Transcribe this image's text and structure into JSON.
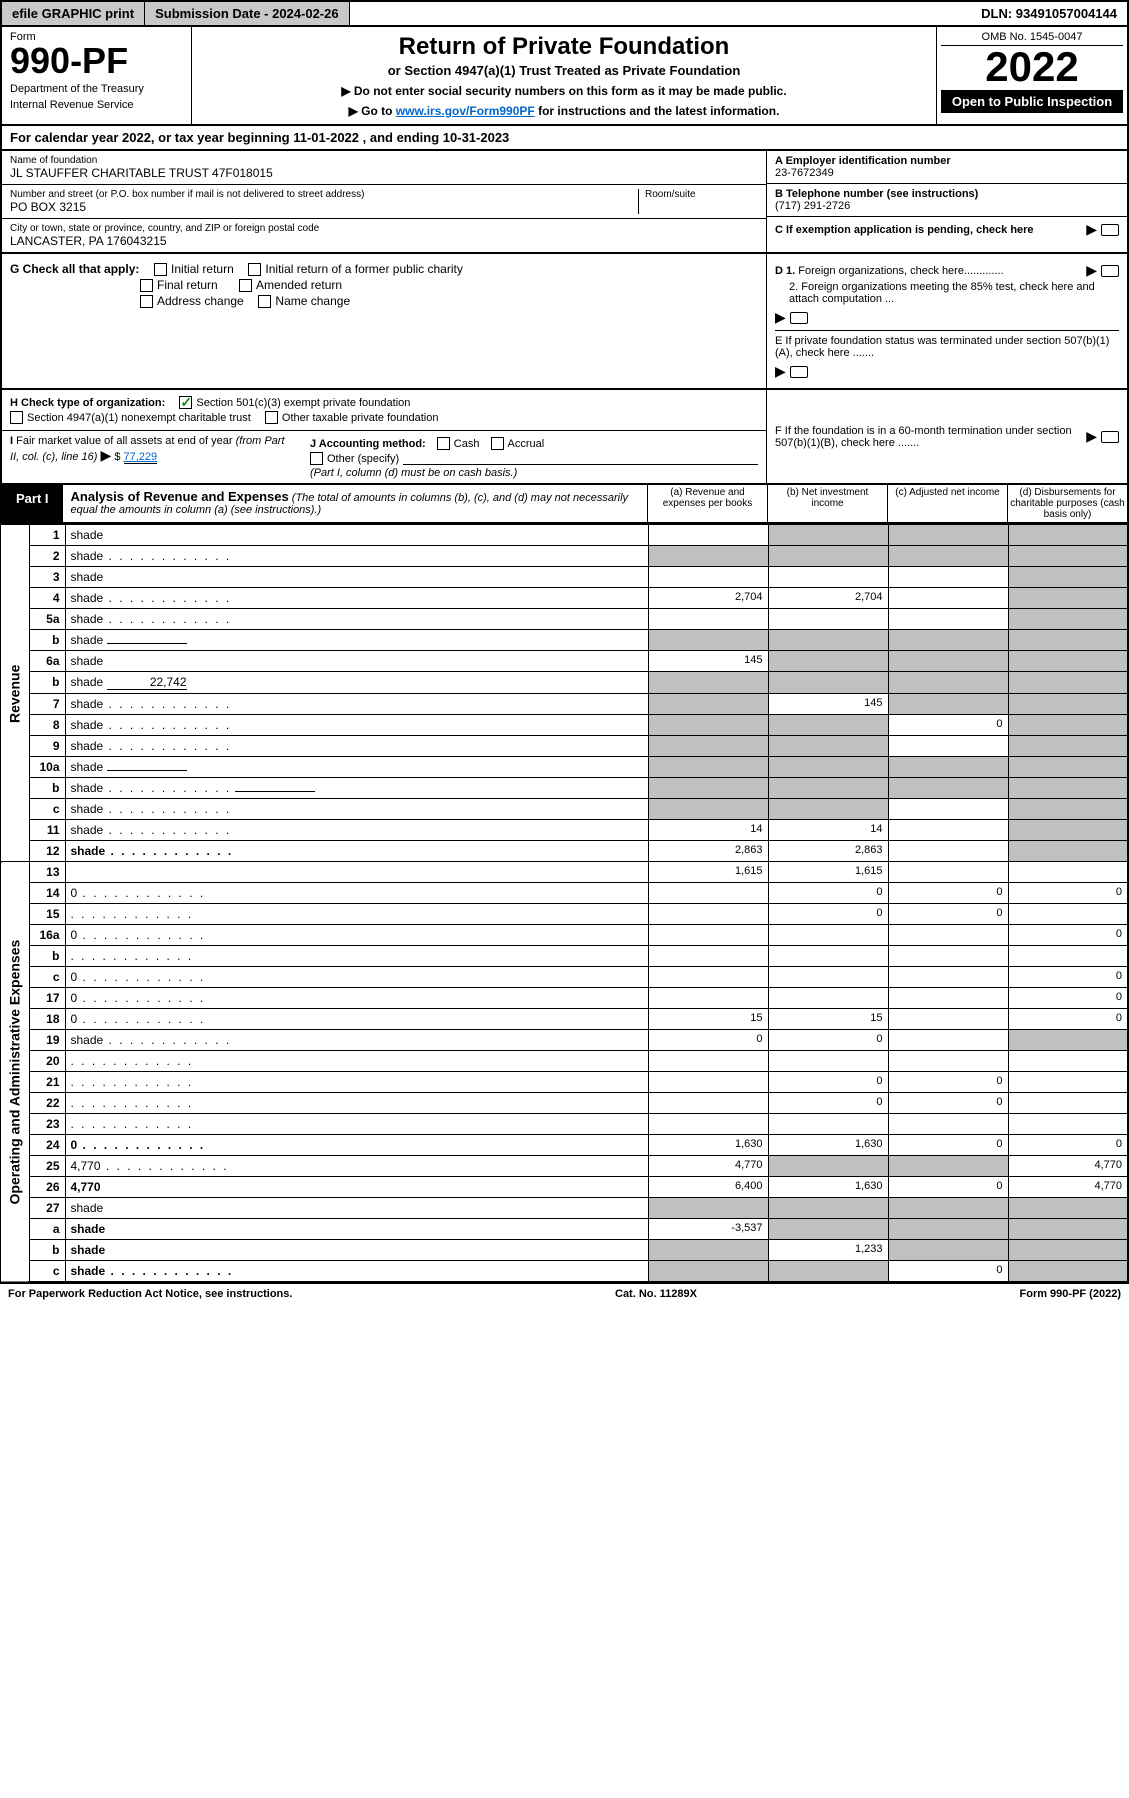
{
  "top": {
    "efile": "efile GRAPHIC print",
    "submission": "Submission Date - 2024-02-26",
    "dln": "DLN: 93491057004144"
  },
  "header": {
    "form_word": "Form",
    "form_number": "990-PF",
    "dept": "Department of the Treasury",
    "irs": "Internal Revenue Service",
    "title": "Return of Private Foundation",
    "subtitle": "or Section 4947(a)(1) Trust Treated as Private Foundation",
    "instr1": "▶ Do not enter social security numbers on this form as it may be made public.",
    "instr2_a": "▶ Go to ",
    "instr2_link": "www.irs.gov/Form990PF",
    "instr2_b": " for instructions and the latest information.",
    "omb": "OMB No. 1545-0047",
    "year": "2022",
    "open": "Open to Public Inspection"
  },
  "calyear": "For calendar year 2022, or tax year beginning 11-01-2022           , and ending 10-31-2023",
  "info": {
    "name_label": "Name of foundation",
    "name": "JL STAUFFER CHARITABLE TRUST 47F018015",
    "addr_label": "Number and street (or P.O. box number if mail is not delivered to street address)",
    "room_label": "Room/suite",
    "addr": "PO BOX 3215",
    "city_label": "City or town, state or province, country, and ZIP or foreign postal code",
    "city": "LANCASTER, PA  176043215",
    "a_label": "A Employer identification number",
    "a_value": "23-7672349",
    "b_label": "B Telephone number (see instructions)",
    "b_value": "(717) 291-2726",
    "c_label": "C If exemption application is pending, check here"
  },
  "g": {
    "label": "G Check all that apply:",
    "initial": "Initial return",
    "initial_former": "Initial return of a former public charity",
    "final": "Final return",
    "amended": "Amended return",
    "address": "Address change",
    "name": "Name change",
    "d1": "D 1. Foreign organizations, check here.............",
    "d2": "2. Foreign organizations meeting the 85% test, check here and attach computation ...",
    "e": "E  If private foundation status was terminated under section 507(b)(1)(A), check here ......."
  },
  "h": {
    "label": "H Check type of organization:",
    "c3": "Section 501(c)(3) exempt private foundation",
    "s4947": "Section 4947(a)(1) nonexempt charitable trust",
    "other": "Other taxable private foundation"
  },
  "i": {
    "label": "I Fair market value of all assets at end of year (from Part II, col. (c), line 16)",
    "arrow": "▶",
    "dollar": "$",
    "value": "77,229"
  },
  "j": {
    "label": "J Accounting method:",
    "cash": "Cash",
    "accrual": "Accrual",
    "other": "Other (specify)",
    "note": "(Part I, column (d) must be on cash basis.)"
  },
  "f": {
    "label": "F  If the foundation is in a 60-month termination under section 507(b)(1)(B), check here ......."
  },
  "part1": {
    "label": "Part I",
    "title": "Analysis of Revenue and Expenses",
    "desc": " (The total of amounts in columns (b), (c), and (d) may not necessarily equal the amounts in column (a) (see instructions).)",
    "col_a": "(a)  Revenue and expenses per books",
    "col_b": "(b)  Net investment income",
    "col_c": "(c)  Adjusted net income",
    "col_d": "(d)  Disbursements for charitable purposes (cash basis only)"
  },
  "sidelabels": {
    "revenue": "Revenue",
    "expenses": "Operating and Administrative Expenses"
  },
  "rows": [
    {
      "n": "1",
      "d": "shade",
      "a": "",
      "b": "shade",
      "c": "shade"
    },
    {
      "n": "2",
      "d": "shade",
      "dots": true,
      "a": "shade",
      "b": "shade",
      "c": "shade"
    },
    {
      "n": "3",
      "d": "shade",
      "a": "",
      "b": "",
      "c": ""
    },
    {
      "n": "4",
      "d": "shade",
      "dots": true,
      "a": "2,704",
      "b": "2,704",
      "c": ""
    },
    {
      "n": "5a",
      "d": "shade",
      "dots": true,
      "a": "",
      "b": "",
      "c": ""
    },
    {
      "n": "b",
      "d": "shade",
      "inline": "",
      "a": "shade",
      "b": "shade",
      "c": "shade"
    },
    {
      "n": "6a",
      "d": "shade",
      "a": "145",
      "b": "shade",
      "c": "shade"
    },
    {
      "n": "b",
      "d": "shade",
      "inline": "22,742",
      "a": "shade",
      "b": "shade",
      "c": "shade"
    },
    {
      "n": "7",
      "d": "shade",
      "dots": true,
      "a": "shade",
      "b": "145",
      "c": "shade"
    },
    {
      "n": "8",
      "d": "shade",
      "dots": true,
      "a": "shade",
      "b": "shade",
      "c": "0"
    },
    {
      "n": "9",
      "d": "shade",
      "dots": true,
      "a": "shade",
      "b": "shade",
      "c": ""
    },
    {
      "n": "10a",
      "d": "shade",
      "inline": "",
      "a": "shade",
      "b": "shade",
      "c": "shade"
    },
    {
      "n": "b",
      "d": "shade",
      "dots": true,
      "inline": "",
      "a": "shade",
      "b": "shade",
      "c": "shade"
    },
    {
      "n": "c",
      "d": "shade",
      "dots": true,
      "a": "shade",
      "b": "shade",
      "c": ""
    },
    {
      "n": "11",
      "d": "shade",
      "dots": true,
      "a": "14",
      "b": "14",
      "c": ""
    },
    {
      "n": "12",
      "d": "shade",
      "bold": true,
      "dots": true,
      "a": "2,863",
      "b": "2,863",
      "c": ""
    },
    {
      "n": "13",
      "d": "",
      "a": "1,615",
      "b": "1,615",
      "c": ""
    },
    {
      "n": "14",
      "d": "0",
      "dots": true,
      "a": "",
      "b": "0",
      "c": "0"
    },
    {
      "n": "15",
      "d": "",
      "dots": true,
      "a": "",
      "b": "0",
      "c": "0"
    },
    {
      "n": "16a",
      "d": "0",
      "dots": true,
      "a": "",
      "b": "",
      "c": ""
    },
    {
      "n": "b",
      "d": "",
      "dots": true,
      "a": "",
      "b": "",
      "c": ""
    },
    {
      "n": "c",
      "d": "0",
      "dots": true,
      "a": "",
      "b": "",
      "c": ""
    },
    {
      "n": "17",
      "d": "0",
      "dots": true,
      "a": "",
      "b": "",
      "c": ""
    },
    {
      "n": "18",
      "d": "0",
      "dots": true,
      "a": "15",
      "b": "15",
      "c": ""
    },
    {
      "n": "19",
      "d": "shade",
      "dots": true,
      "a": "0",
      "b": "0",
      "c": ""
    },
    {
      "n": "20",
      "d": "",
      "dots": true,
      "a": "",
      "b": "",
      "c": ""
    },
    {
      "n": "21",
      "d": "",
      "dots": true,
      "a": "",
      "b": "0",
      "c": "0"
    },
    {
      "n": "22",
      "d": "",
      "dots": true,
      "a": "",
      "b": "0",
      "c": "0"
    },
    {
      "n": "23",
      "d": "",
      "dots": true,
      "a": "",
      "b": "",
      "c": ""
    },
    {
      "n": "24",
      "d": "0",
      "bold": true,
      "dots": true,
      "a": "1,630",
      "b": "1,630",
      "c": "0"
    },
    {
      "n": "25",
      "d": "4,770",
      "dots": true,
      "a": "4,770",
      "b": "shade",
      "c": "shade"
    },
    {
      "n": "26",
      "d": "4,770",
      "bold": true,
      "a": "6,400",
      "b": "1,630",
      "c": "0"
    },
    {
      "n": "27",
      "d": "shade",
      "a": "shade",
      "b": "shade",
      "c": "shade"
    },
    {
      "n": "a",
      "d": "shade",
      "bold": true,
      "a": "-3,537",
      "b": "shade",
      "c": "shade"
    },
    {
      "n": "b",
      "d": "shade",
      "bold": true,
      "a": "shade",
      "b": "1,233",
      "c": "shade"
    },
    {
      "n": "c",
      "d": "shade",
      "bold": true,
      "dots": true,
      "a": "shade",
      "b": "shade",
      "c": "0"
    }
  ],
  "footer": {
    "left": "For Paperwork Reduction Act Notice, see instructions.",
    "center": "Cat. No. 11289X",
    "right": "Form 990-PF (2022)"
  }
}
